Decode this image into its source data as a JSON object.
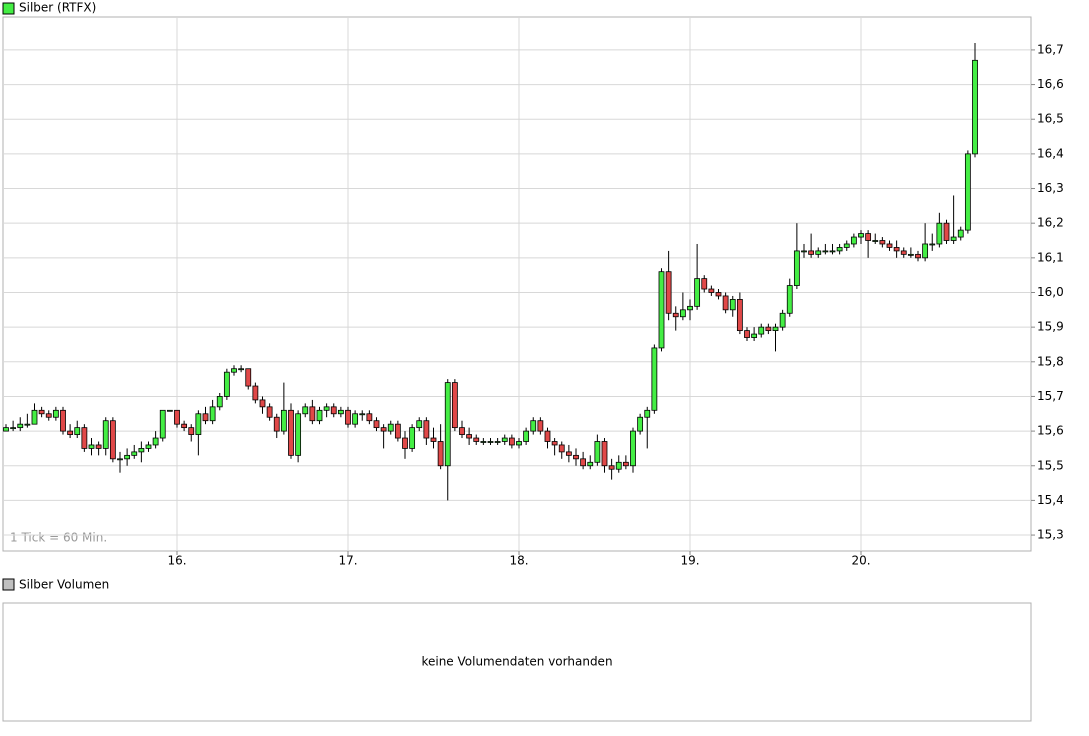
{
  "chart_data": {
    "type": "candlestick",
    "legend": "Silber (RTFX)",
    "note": "1 Tick = 60 Min.",
    "up_color": "#44ee44",
    "down_color": "#e04848",
    "grid": true,
    "xlim": [
      -0.42,
      143.86
    ],
    "xticks": [
      {
        "value": 24,
        "label": "16."
      },
      {
        "value": 48,
        "label": "17."
      },
      {
        "value": 72,
        "label": "18."
      },
      {
        "value": 96,
        "label": "19."
      },
      {
        "value": 120,
        "label": "20."
      }
    ],
    "ylim": [
      15.254,
      16.795
    ],
    "yticks": [
      {
        "value": 15.3,
        "label": "15,3"
      },
      {
        "value": 15.4,
        "label": "15,4"
      },
      {
        "value": 15.5,
        "label": "15,5"
      },
      {
        "value": 15.6,
        "label": "15,6"
      },
      {
        "value": 15.7,
        "label": "15,7"
      },
      {
        "value": 15.8,
        "label": "15,8"
      },
      {
        "value": 15.9,
        "label": "15,9"
      },
      {
        "value": 16.0,
        "label": "16,0"
      },
      {
        "value": 16.1,
        "label": "16,1"
      },
      {
        "value": 16.2,
        "label": "16,2"
      },
      {
        "value": 16.3,
        "label": "16,3"
      },
      {
        "value": 16.4,
        "label": "16,4"
      },
      {
        "value": 16.5,
        "label": "16,5"
      },
      {
        "value": 16.6,
        "label": "16,6"
      },
      {
        "value": 16.7,
        "label": "16,7"
      }
    ],
    "x": [
      0,
      1,
      2,
      3,
      4,
      5,
      6,
      7,
      8,
      9,
      10,
      11,
      12,
      13,
      14,
      15,
      16,
      17,
      18,
      19,
      20,
      21,
      22,
      23,
      24,
      25,
      26,
      27,
      28,
      29,
      30,
      31,
      32,
      33,
      34,
      35,
      36,
      37,
      38,
      39,
      40,
      41,
      42,
      43,
      44,
      45,
      46,
      47,
      48,
      49,
      50,
      51,
      52,
      53,
      54,
      55,
      56,
      57,
      58,
      59,
      60,
      61,
      62,
      63,
      64,
      65,
      66,
      67,
      68,
      69,
      70,
      71,
      72,
      73,
      74,
      75,
      76,
      77,
      78,
      79,
      80,
      81,
      82,
      83,
      84,
      85,
      86,
      87,
      88,
      89,
      90,
      91,
      92,
      93,
      94,
      95,
      96,
      97,
      98,
      99,
      100,
      101,
      102,
      103,
      104,
      105,
      106,
      107,
      108,
      109,
      110,
      111,
      112,
      113,
      114,
      115,
      116,
      117,
      118,
      119,
      120,
      121,
      122,
      123,
      124,
      125,
      126,
      127,
      128,
      129,
      130,
      131,
      132,
      133,
      134,
      135,
      136
    ],
    "ohlc": [
      [
        15.6,
        15.62,
        15.6,
        15.61
      ],
      [
        15.61,
        15.63,
        15.6,
        15.61
      ],
      [
        15.61,
        15.64,
        15.6,
        15.62
      ],
      [
        15.62,
        15.65,
        15.61,
        15.62
      ],
      [
        15.62,
        15.68,
        15.62,
        15.66
      ],
      [
        15.66,
        15.67,
        15.64,
        15.65
      ],
      [
        15.65,
        15.66,
        15.63,
        15.64
      ],
      [
        15.64,
        15.67,
        15.63,
        15.66
      ],
      [
        15.66,
        15.67,
        15.59,
        15.6
      ],
      [
        15.6,
        15.62,
        15.58,
        15.59
      ],
      [
        15.59,
        15.63,
        15.58,
        15.61
      ],
      [
        15.61,
        15.62,
        15.54,
        15.55
      ],
      [
        15.55,
        15.58,
        15.53,
        15.56
      ],
      [
        15.56,
        15.57,
        15.53,
        15.55
      ],
      [
        15.55,
        15.64,
        15.53,
        15.63
      ],
      [
        15.63,
        15.64,
        15.51,
        15.52
      ],
      [
        15.52,
        15.54,
        15.48,
        15.52
      ],
      [
        15.52,
        15.55,
        15.5,
        15.53
      ],
      [
        15.53,
        15.56,
        15.52,
        15.54
      ],
      [
        15.54,
        15.57,
        15.51,
        15.55
      ],
      [
        15.55,
        15.57,
        15.54,
        15.56
      ],
      [
        15.56,
        15.6,
        15.55,
        15.58
      ],
      [
        15.58,
        15.66,
        15.57,
        15.66
      ],
      [
        15.66,
        15.66,
        15.66,
        15.66
      ],
      [
        15.66,
        15.66,
        15.61,
        15.62
      ],
      [
        15.62,
        15.63,
        15.6,
        15.61
      ],
      [
        15.61,
        15.62,
        15.57,
        15.59
      ],
      [
        15.59,
        15.66,
        15.53,
        15.65
      ],
      [
        15.65,
        15.67,
        15.62,
        15.63
      ],
      [
        15.63,
        15.69,
        15.62,
        15.67
      ],
      [
        15.67,
        15.71,
        15.66,
        15.7
      ],
      [
        15.7,
        15.78,
        15.69,
        15.77
      ],
      [
        15.77,
        15.79,
        15.76,
        15.78
      ],
      [
        15.78,
        15.79,
        15.77,
        15.78
      ],
      [
        15.78,
        15.78,
        15.72,
        15.73
      ],
      [
        15.73,
        15.74,
        15.68,
        15.69
      ],
      [
        15.69,
        15.7,
        15.65,
        15.67
      ],
      [
        15.67,
        15.68,
        15.63,
        15.64
      ],
      [
        15.64,
        15.65,
        15.58,
        15.6
      ],
      [
        15.6,
        15.74,
        15.59,
        15.66
      ],
      [
        15.66,
        15.68,
        15.52,
        15.53
      ],
      [
        15.53,
        15.66,
        15.51,
        15.65
      ],
      [
        15.65,
        15.68,
        15.64,
        15.67
      ],
      [
        15.67,
        15.69,
        15.62,
        15.63
      ],
      [
        15.63,
        15.67,
        15.62,
        15.66
      ],
      [
        15.66,
        15.68,
        15.64,
        15.67
      ],
      [
        15.67,
        15.68,
        15.64,
        15.65
      ],
      [
        15.65,
        15.67,
        15.64,
        15.66
      ],
      [
        15.66,
        15.67,
        15.61,
        15.62
      ],
      [
        15.62,
        15.66,
        15.61,
        15.65
      ],
      [
        15.65,
        15.66,
        15.63,
        15.65
      ],
      [
        15.65,
        15.66,
        15.62,
        15.63
      ],
      [
        15.63,
        15.64,
        15.6,
        15.61
      ],
      [
        15.61,
        15.62,
        15.55,
        15.6
      ],
      [
        15.6,
        15.63,
        15.59,
        15.62
      ],
      [
        15.62,
        15.63,
        15.57,
        15.58
      ],
      [
        15.58,
        15.6,
        15.52,
        15.55
      ],
      [
        15.55,
        15.62,
        15.54,
        15.61
      ],
      [
        15.61,
        15.64,
        15.6,
        15.63
      ],
      [
        15.63,
        15.64,
        15.56,
        15.58
      ],
      [
        15.58,
        15.61,
        15.55,
        15.57
      ],
      [
        15.57,
        15.62,
        15.49,
        15.5
      ],
      [
        15.5,
        15.75,
        15.4,
        15.74
      ],
      [
        15.74,
        15.75,
        15.6,
        15.61
      ],
      [
        15.61,
        15.63,
        15.58,
        15.59
      ],
      [
        15.59,
        15.61,
        15.56,
        15.58
      ],
      [
        15.58,
        15.59,
        15.56,
        15.57
      ],
      [
        15.57,
        15.58,
        15.56,
        15.57
      ],
      [
        15.57,
        15.58,
        15.56,
        15.57
      ],
      [
        15.57,
        15.58,
        15.56,
        15.57
      ],
      [
        15.57,
        15.59,
        15.56,
        15.58
      ],
      [
        15.58,
        15.59,
        15.55,
        15.56
      ],
      [
        15.56,
        15.58,
        15.55,
        15.57
      ],
      [
        15.57,
        15.61,
        15.56,
        15.6
      ],
      [
        15.6,
        15.64,
        15.59,
        15.63
      ],
      [
        15.63,
        15.64,
        15.59,
        15.6
      ],
      [
        15.6,
        15.61,
        15.55,
        15.57
      ],
      [
        15.57,
        15.58,
        15.53,
        15.56
      ],
      [
        15.56,
        15.57,
        15.52,
        15.54
      ],
      [
        15.54,
        15.56,
        15.51,
        15.53
      ],
      [
        15.53,
        15.55,
        15.5,
        15.52
      ],
      [
        15.52,
        15.54,
        15.49,
        15.5
      ],
      [
        15.5,
        15.53,
        15.49,
        15.51
      ],
      [
        15.51,
        15.59,
        15.5,
        15.57
      ],
      [
        15.57,
        15.58,
        15.48,
        15.5
      ],
      [
        15.5,
        15.52,
        15.46,
        15.49
      ],
      [
        15.49,
        15.53,
        15.48,
        15.51
      ],
      [
        15.51,
        15.53,
        15.49,
        15.5
      ],
      [
        15.5,
        15.61,
        15.48,
        15.6
      ],
      [
        15.6,
        15.65,
        15.59,
        15.64
      ],
      [
        15.64,
        15.67,
        15.55,
        15.66
      ],
      [
        15.66,
        15.85,
        15.65,
        15.84
      ],
      [
        15.84,
        16.07,
        15.83,
        16.06
      ],
      [
        16.06,
        16.12,
        15.92,
        15.94
      ],
      [
        15.94,
        15.96,
        15.89,
        15.93
      ],
      [
        15.93,
        16.0,
        15.92,
        15.95
      ],
      [
        15.95,
        15.98,
        15.92,
        15.96
      ],
      [
        15.96,
        16.14,
        15.95,
        16.04
      ],
      [
        16.04,
        16.05,
        16.0,
        16.01
      ],
      [
        16.01,
        16.02,
        15.99,
        16.0
      ],
      [
        16.0,
        16.01,
        15.98,
        15.99
      ],
      [
        15.99,
        16.0,
        15.94,
        15.95
      ],
      [
        15.95,
        15.99,
        15.93,
        15.98
      ],
      [
        15.98,
        16.0,
        15.88,
        15.89
      ],
      [
        15.89,
        15.9,
        15.86,
        15.87
      ],
      [
        15.87,
        15.9,
        15.86,
        15.88
      ],
      [
        15.88,
        15.91,
        15.87,
        15.9
      ],
      [
        15.9,
        15.91,
        15.88,
        15.89
      ],
      [
        15.89,
        15.91,
        15.83,
        15.9
      ],
      [
        15.9,
        15.95,
        15.89,
        15.94
      ],
      [
        15.94,
        16.04,
        15.93,
        16.02
      ],
      [
        16.02,
        16.2,
        16.01,
        16.12
      ],
      [
        16.12,
        16.14,
        16.1,
        16.12
      ],
      [
        16.12,
        16.17,
        16.1,
        16.11
      ],
      [
        16.11,
        16.13,
        16.1,
        16.12
      ],
      [
        16.12,
        16.14,
        16.11,
        16.12
      ],
      [
        16.12,
        16.14,
        16.11,
        16.12
      ],
      [
        16.12,
        16.14,
        16.11,
        16.13
      ],
      [
        16.13,
        16.15,
        16.12,
        16.14
      ],
      [
        16.14,
        16.17,
        16.13,
        16.16
      ],
      [
        16.16,
        16.18,
        16.14,
        16.17
      ],
      [
        16.17,
        16.18,
        16.1,
        16.15
      ],
      [
        16.15,
        16.17,
        16.14,
        16.15
      ],
      [
        16.15,
        16.16,
        16.13,
        16.14
      ],
      [
        16.14,
        16.15,
        16.12,
        16.13
      ],
      [
        16.13,
        16.15,
        16.1,
        16.12
      ],
      [
        16.12,
        16.13,
        16.1,
        16.11
      ],
      [
        16.11,
        16.13,
        16.1,
        16.11
      ],
      [
        16.11,
        16.12,
        16.09,
        16.1
      ],
      [
        16.1,
        16.2,
        16.09,
        16.14
      ],
      [
        16.14,
        16.17,
        16.12,
        16.14
      ],
      [
        16.14,
        16.23,
        16.13,
        16.2
      ],
      [
        16.2,
        16.21,
        16.14,
        16.15
      ],
      [
        16.15,
        16.28,
        16.14,
        16.16
      ],
      [
        16.16,
        16.19,
        16.15,
        16.18
      ],
      [
        16.18,
        16.41,
        16.17,
        16.4
      ],
      [
        16.4,
        16.72,
        16.39,
        16.67
      ]
    ]
  },
  "volume_panel": {
    "title": "Silber Volumen",
    "message": "keine Volumendaten vorhanden",
    "color": "#c0c0c0"
  }
}
